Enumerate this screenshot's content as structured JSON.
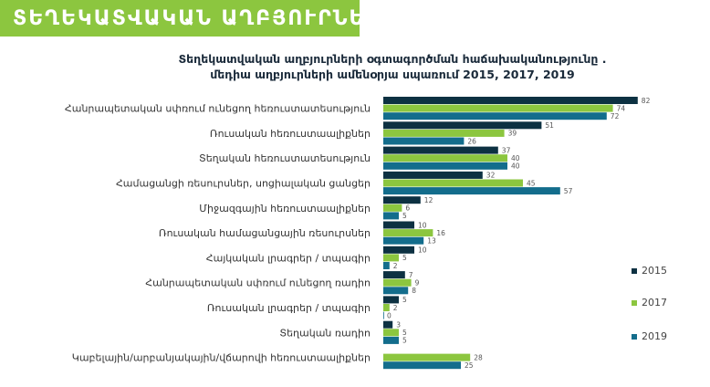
{
  "banner": {
    "title": "ՏԵՂԵԿԱՏՎԱԿԱՆ ԱՂԲՅՈՒՐՆԵՐ"
  },
  "chart_data": {
    "type": "bar",
    "orientation": "horizontal",
    "title_line1": "Տեղեկատվական աղբյուրների օգտագործման հաճախականությունը .",
    "title_line2": "մեդիա աղբյուրների ամենօրյա սպառում  2015, 2017, 2019",
    "categories": [
      "Հանրապետական սփռում ունեցող  հեռուստատեսություն",
      "Ռուսական հեռուստաալիքներ",
      "Տեղական հեռուստատեսություն",
      "Համացանցի ռեսուրսներ, սոցիալական ցանցեր",
      "Միջազգային հեռուստաալիքներ",
      "Ռուսական համացանցային ռեսուրսներ",
      "Հայկական լրագրեր / տպագիր",
      "Հանրապետական սփռում ունեցող ռադիո",
      "Ռուսական լրագրեր / տպագիր",
      "Տեղական ռադիո",
      "Կաբելային/արբանյակային/վճարովի հեռուստաալիքներ"
    ],
    "series": [
      {
        "name": "2015",
        "color": "#0d3142",
        "values": [
          82,
          51,
          37,
          32,
          12,
          10,
          10,
          7,
          5,
          3,
          null
        ]
      },
      {
        "name": "2017",
        "color": "#8cc63f",
        "values": [
          74,
          39,
          40,
          45,
          6,
          16,
          5,
          9,
          2,
          5,
          28
        ]
      },
      {
        "name": "2019",
        "color": "#136d8c",
        "values": [
          72,
          26,
          40,
          57,
          5,
          13,
          2,
          8,
          0,
          5,
          25
        ]
      }
    ],
    "xlim": [
      0,
      90
    ],
    "grid": false,
    "legend_position": "right"
  }
}
